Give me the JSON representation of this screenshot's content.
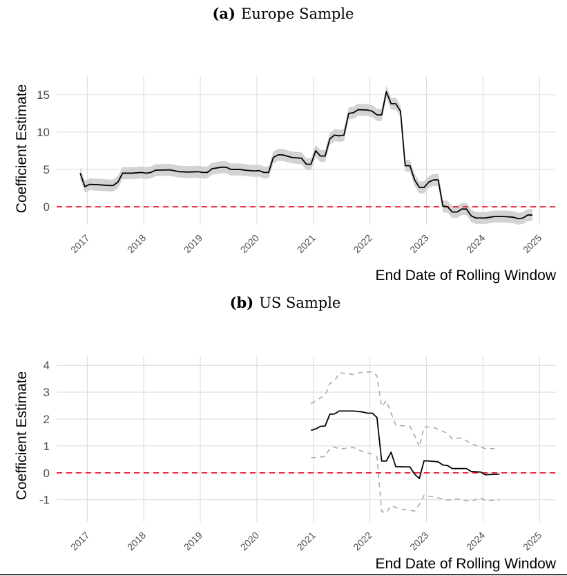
{
  "chart_data": [
    {
      "type": "line",
      "panel_label": "(a)",
      "title": "Europe Sample",
      "xlabel": "End Date of Rolling Window",
      "ylabel": "Coefficient Estimate",
      "xlim": [
        "2016-06",
        "2025-04"
      ],
      "ylim": [
        -2.4,
        17.5
      ],
      "xticks": [
        "2017",
        "2018",
        "2019",
        "2020",
        "2021",
        "2022",
        "2023",
        "2024",
        "2025"
      ],
      "yticks": [
        0,
        5,
        10,
        15
      ],
      "yticklabels": [
        "0",
        "5",
        "10",
        "15"
      ],
      "grid": true,
      "reference_line": {
        "y": 0,
        "color": "#e8001c",
        "style": "dashed"
      },
      "band_color": "#d3d3d3",
      "ci_halfwidth": 0.8,
      "series": [
        {
          "x": [
            "2016-11",
            "2016-12",
            "2017-01",
            "2017-03",
            "2017-05",
            "2017-06",
            "2017-07",
            "2017-08",
            "2017-10",
            "2017-12",
            "2018-01",
            "2018-02",
            "2018-03",
            "2018-06",
            "2018-08",
            "2018-10",
            "2018-12",
            "2019-01",
            "2019-02",
            "2019-03",
            "2019-05",
            "2019-06",
            "2019-07",
            "2019-09",
            "2019-10",
            "2019-12",
            "2020-01",
            "2020-02",
            "2020-03",
            "2020-04",
            "2020-05",
            "2020-06",
            "2020-08",
            "2020-10",
            "2020-11",
            "2020-12",
            "2021-01",
            "2021-02",
            "2021-03",
            "2021-04",
            "2021-05",
            "2021-06",
            "2021-07",
            "2021-08",
            "2021-09",
            "2021-10",
            "2021-12",
            "2022-01",
            "2022-02",
            "2022-03",
            "2022-04",
            "2022-05",
            "2022-06",
            "2022-07",
            "2022-08",
            "2022-09",
            "2022-10",
            "2022-11",
            "2022-12",
            "2023-01",
            "2023-02",
            "2023-03",
            "2023-04",
            "2023-05",
            "2023-06",
            "2023-07",
            "2023-08",
            "2023-09",
            "2023-10",
            "2023-11",
            "2024-01",
            "2024-02",
            "2024-03",
            "2024-05",
            "2024-07",
            "2024-08",
            "2024-09",
            "2024-10",
            "2024-11"
          ],
          "values": [
            4.5,
            2.7,
            3.0,
            2.95,
            2.85,
            2.85,
            3.3,
            4.5,
            4.5,
            4.6,
            4.5,
            4.6,
            4.9,
            4.95,
            4.7,
            4.65,
            4.7,
            4.6,
            4.6,
            5.1,
            5.3,
            5.3,
            5.0,
            5.0,
            4.9,
            4.8,
            4.85,
            4.6,
            4.6,
            6.6,
            6.95,
            6.95,
            6.6,
            6.5,
            5.7,
            5.7,
            7.5,
            6.8,
            6.8,
            9.1,
            9.6,
            9.5,
            9.6,
            12.5,
            12.6,
            13.0,
            12.95,
            12.8,
            12.3,
            12.3,
            15.4,
            13.8,
            13.8,
            12.8,
            5.5,
            5.5,
            3.6,
            2.6,
            2.6,
            3.3,
            3.6,
            3.6,
            0.1,
            0.0,
            -0.7,
            -0.7,
            -0.3,
            -0.3,
            -1.2,
            -1.5,
            -1.5,
            -1.4,
            -1.3,
            -1.3,
            -1.4,
            -1.6,
            -1.5,
            -1.1,
            -1.1
          ],
          "color": "#000000"
        }
      ]
    },
    {
      "type": "line",
      "panel_label": "(b)",
      "title": "US Sample",
      "xlabel": "End Date of Rolling Window",
      "ylabel": "Coefficient Estimate",
      "xlim": [
        "2016-06",
        "2025-04"
      ],
      "ylim": [
        -1.83,
        4.34
      ],
      "xticks": [
        "2017",
        "2018",
        "2019",
        "2020",
        "2021",
        "2022",
        "2023",
        "2024",
        "2025"
      ],
      "yticks": [
        -1,
        0,
        1,
        2,
        3,
        4
      ],
      "yticklabels": [
        "-1",
        "0",
        "1",
        "2",
        "3",
        "4"
      ],
      "grid": true,
      "reference_line": {
        "y": 0,
        "color": "#e8001c",
        "style": "dashed"
      },
      "series": [
        {
          "role": "estimate",
          "color": "#000000",
          "style": "solid",
          "x": [
            "2020-12",
            "2021-01",
            "2021-02",
            "2021-03",
            "2021-04",
            "2021-05",
            "2021-06",
            "2021-09",
            "2021-11",
            "2021-12",
            "2022-01",
            "2022-02",
            "2022-03",
            "2022-04",
            "2022-05",
            "2022-06",
            "2022-09",
            "2022-10",
            "2022-11",
            "2022-12",
            "2023-01",
            "2023-03",
            "2023-04",
            "2023-05",
            "2023-06",
            "2023-09",
            "2023-10",
            "2023-12",
            "2024-01",
            "2024-04"
          ],
          "values": [
            1.58,
            1.63,
            1.73,
            1.74,
            2.18,
            2.19,
            2.3,
            2.3,
            2.26,
            2.22,
            2.22,
            2.06,
            0.44,
            0.44,
            0.77,
            0.23,
            0.22,
            -0.05,
            -0.21,
            0.45,
            0.44,
            0.41,
            0.29,
            0.27,
            0.16,
            0.16,
            0.05,
            0.03,
            -0.07,
            -0.05
          ]
        },
        {
          "role": "upper",
          "color": "#a9a9a9",
          "style": "dashed",
          "x": [
            "2020-12",
            "2021-03",
            "2021-04",
            "2021-05",
            "2021-06",
            "2021-09",
            "2021-11",
            "2022-01",
            "2022-02",
            "2022-03",
            "2022-04",
            "2022-06",
            "2022-09",
            "2022-10",
            "2022-11",
            "2022-12",
            "2023-02",
            "2023-05",
            "2023-06",
            "2023-08",
            "2023-10",
            "2024-01",
            "2024-03"
          ],
          "values": [
            2.57,
            2.89,
            3.32,
            3.4,
            3.72,
            3.66,
            3.75,
            3.75,
            3.61,
            2.46,
            2.68,
            1.77,
            1.73,
            1.39,
            0.96,
            1.71,
            1.69,
            1.47,
            1.26,
            1.3,
            1.08,
            0.9,
            0.9
          ]
        },
        {
          "role": "lower",
          "color": "#a9a9a9",
          "style": "dashed",
          "x": [
            "2020-12",
            "2021-01",
            "2021-03",
            "2021-04",
            "2021-05",
            "2021-06",
            "2021-09",
            "2021-11",
            "2022-01",
            "2022-02",
            "2022-03",
            "2022-04",
            "2022-05",
            "2022-07",
            "2022-10",
            "2022-11",
            "2022-12",
            "2023-03",
            "2023-05",
            "2023-07",
            "2023-10",
            "2023-12",
            "2024-01",
            "2024-04"
          ],
          "values": [
            0.57,
            0.57,
            0.61,
            0.91,
            0.96,
            0.89,
            0.94,
            0.79,
            0.7,
            0.61,
            -1.44,
            -1.48,
            -1.22,
            -1.35,
            -1.42,
            -1.18,
            -0.84,
            -0.93,
            -1.01,
            -0.97,
            -1.06,
            -0.92,
            -1.04,
            -1.0
          ]
        }
      ]
    }
  ]
}
